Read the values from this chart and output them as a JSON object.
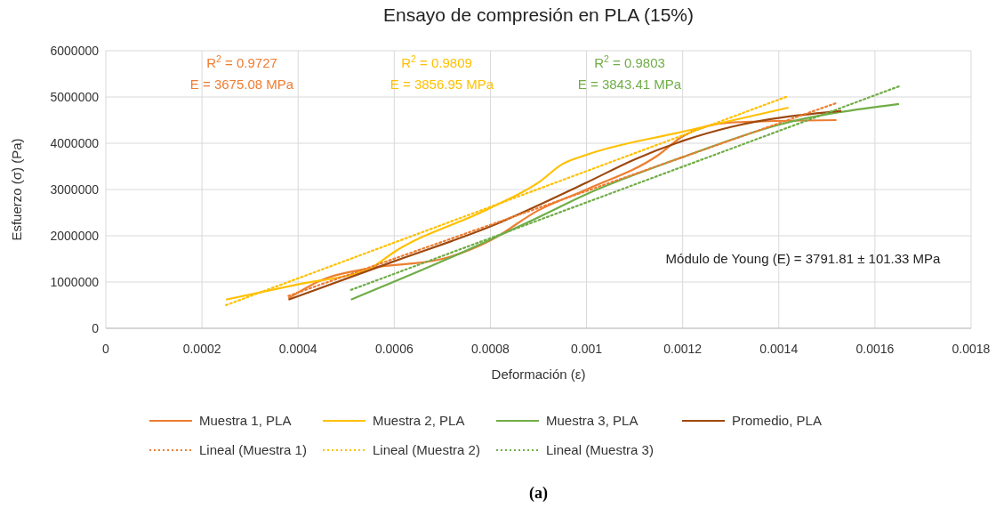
{
  "chart_data": {
    "type": "line",
    "title": "Ensayo de compresión en PLA (15%)",
    "xlabel": "Deformación (ε)",
    "ylabel": "Esfuerzo (σ) (Pa)",
    "xlim": [
      0,
      0.0018
    ],
    "xticks": [
      0,
      0.0002,
      0.0004,
      0.0006,
      0.0008,
      0.001,
      0.0012,
      0.0014,
      0.0016,
      0.0018
    ],
    "ylim": [
      0,
      6000000
    ],
    "yticks": [
      0,
      1000000,
      2000000,
      3000000,
      4000000,
      5000000,
      6000000
    ],
    "grid": true,
    "legend": "bottom",
    "marker": "none",
    "series": [
      {
        "name": "Muestra 1, PLA",
        "color": "#ed7d31",
        "line_style": "solid",
        "x": [
          0.00038,
          0.00045,
          0.00055,
          0.0007,
          0.0008,
          0.0009,
          0.001,
          0.00115,
          0.0012,
          0.0013,
          0.00152
        ],
        "values": [
          650000,
          1050000,
          1300000,
          1500000,
          1900000,
          2550000,
          3000000,
          3750000,
          4150000,
          4450000,
          4500000
        ]
      },
      {
        "name": "Muestra 2, PLA",
        "color": "#ffc000",
        "line_style": "solid",
        "x": [
          0.00025,
          0.0004,
          0.00055,
          0.0006,
          0.0008,
          0.0009,
          0.00095,
          0.001,
          0.0012,
          0.00142
        ],
        "values": [
          620000,
          950000,
          1300000,
          1650000,
          2600000,
          3150000,
          3550000,
          3750000,
          4250000,
          4770000
        ]
      },
      {
        "name": "Muestra 3, PLA",
        "color": "#70ad47",
        "line_style": "solid",
        "x": [
          0.00051,
          0.0007,
          0.0009,
          0.001,
          0.0012,
          0.0014,
          0.00165
        ],
        "values": [
          620000,
          1450000,
          2400000,
          2900000,
          3700000,
          4400000,
          4850000
        ]
      },
      {
        "name": "Promedio, PLA",
        "color": "#9e480e",
        "line_style": "solid",
        "x": [
          0.00038,
          0.0006,
          0.0008,
          0.001,
          0.0011,
          0.0012,
          0.0013,
          0.00153
        ],
        "values": [
          620000,
          1450000,
          2200000,
          3150000,
          3650000,
          4050000,
          4350000,
          4700000
        ]
      },
      {
        "name": "Lineal (Muestra 1)",
        "color": "#ed7d31",
        "line_style": "dotted",
        "x": [
          0.00038,
          0.00152
        ],
        "values": [
          700000,
          4870000
        ]
      },
      {
        "name": "Lineal (Muestra 2)",
        "color": "#ffc000",
        "line_style": "dotted",
        "x": [
          0.00025,
          0.00142
        ],
        "values": [
          500000,
          5020000
        ]
      },
      {
        "name": "Lineal (Muestra 3)",
        "color": "#70ad47",
        "line_style": "dotted",
        "x": [
          0.00051,
          0.00165
        ],
        "values": [
          830000,
          5230000
        ]
      }
    ],
    "annotations": [
      "R$^{2}$ = 0.9727",
      "E = 3675.08 MPa",
      "R$^{2}$ = 0.9809",
      "E = 3856.95 MPa",
      "R$^{2}$ = 0.9803",
      "E = 3843.41 MPa",
      "Módulo de Young (E) = 3791.81 ± 101.33 MPa",
      "(a)"
    ]
  }
}
